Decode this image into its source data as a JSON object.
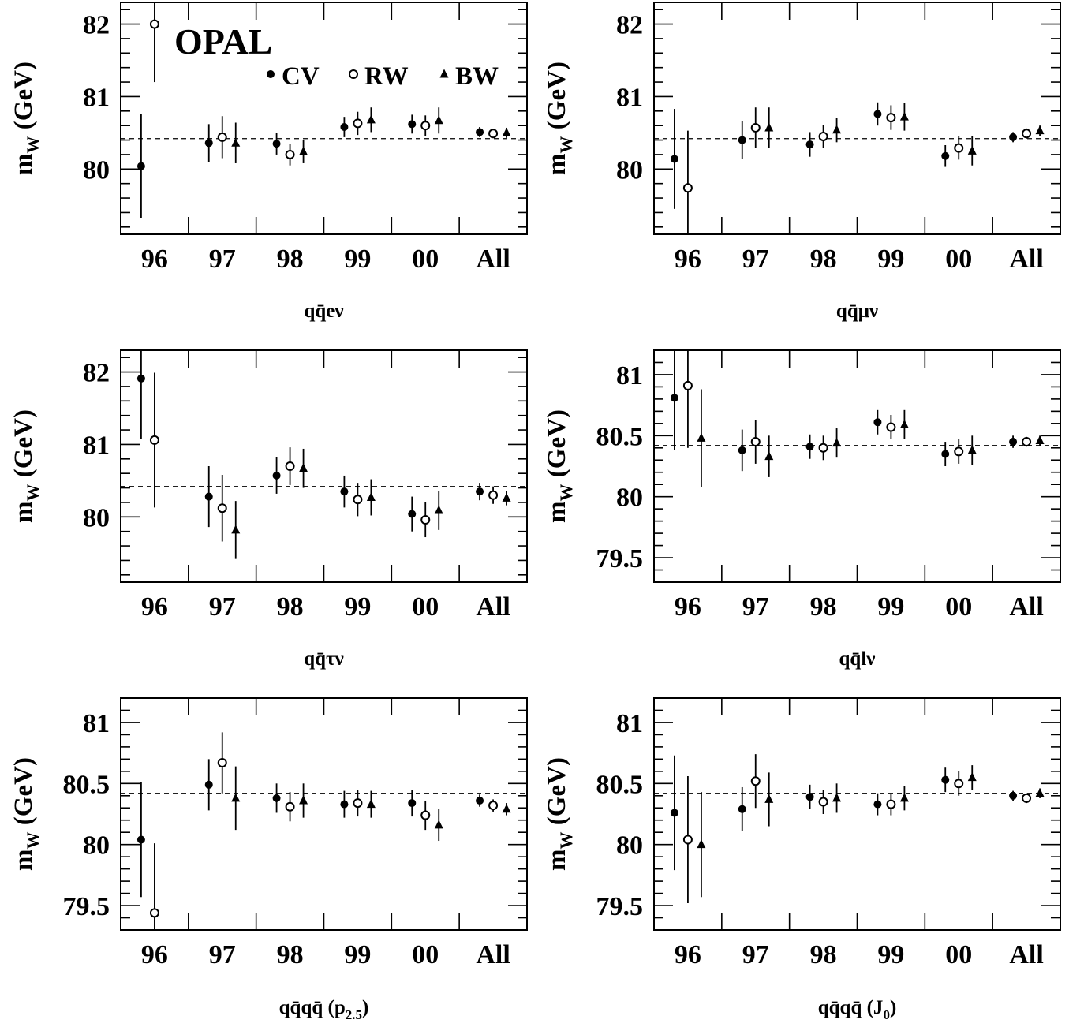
{
  "figure": {
    "brand": "OPAL",
    "legend": [
      {
        "label": "CV",
        "marker": "filled-circle"
      },
      {
        "label": "RW",
        "marker": "open-circle"
      },
      {
        "label": "BW",
        "marker": "filled-triangle"
      }
    ],
    "ylabel_main": "m",
    "ylabel_sub": "W",
    "ylabel_unit": "(GeV)",
    "categories": [
      "96",
      "97",
      "98",
      "99",
      "00",
      "All"
    ],
    "reference_value": 80.42,
    "reference_style": "dashed"
  },
  "chart_data": [
    {
      "type": "scatter",
      "caption": "qq̄eν",
      "categories": [
        "96",
        "97",
        "98",
        "99",
        "00",
        "All"
      ],
      "ylim": [
        79.1,
        82.3
      ],
      "yticks": [
        "80",
        "81",
        "82"
      ],
      "series": [
        {
          "name": "CV",
          "values": [
            80.04,
            80.36,
            80.35,
            80.58,
            80.62,
            80.51
          ],
          "errors": [
            0.72,
            0.26,
            0.15,
            0.14,
            0.13,
            0.07
          ]
        },
        {
          "name": "RW",
          "values": [
            82.0,
            80.44,
            80.2,
            80.63,
            80.6,
            80.49
          ],
          "errors": [
            0.8,
            0.29,
            0.15,
            0.16,
            0.14,
            0.06
          ]
        },
        {
          "name": "BW",
          "values": [
            null,
            80.36,
            80.24,
            80.68,
            80.67,
            80.5
          ],
          "errors": [
            null,
            0.28,
            0.16,
            0.17,
            0.18,
            0.07
          ]
        }
      ]
    },
    {
      "type": "scatter",
      "caption": "qq̄μν",
      "categories": [
        "96",
        "97",
        "98",
        "99",
        "00",
        "All"
      ],
      "ylim": [
        79.1,
        82.3
      ],
      "yticks": [
        "80",
        "81",
        "82"
      ],
      "series": [
        {
          "name": "CV",
          "values": [
            80.14,
            80.4,
            80.34,
            80.76,
            80.18,
            80.44
          ],
          "errors": [
            0.69,
            0.26,
            0.17,
            0.16,
            0.15,
            0.07
          ]
        },
        {
          "name": "RW",
          "values": [
            79.74,
            80.57,
            80.45,
            80.71,
            80.29,
            80.49
          ],
          "errors": [
            0.79,
            0.28,
            0.16,
            0.17,
            0.16,
            0.07
          ]
        },
        {
          "name": "BW",
          "values": [
            null,
            80.57,
            80.54,
            80.72,
            80.25,
            80.53
          ],
          "errors": [
            null,
            0.28,
            0.17,
            0.19,
            0.2,
            0.07
          ]
        }
      ]
    },
    {
      "type": "scatter",
      "caption": "qq̄τν",
      "categories": [
        "96",
        "97",
        "98",
        "99",
        "00",
        "All"
      ],
      "ylim": [
        79.1,
        82.3
      ],
      "yticks": [
        "80",
        "81",
        "82"
      ],
      "series": [
        {
          "name": "CV",
          "values": [
            81.91,
            80.28,
            80.57,
            80.35,
            80.04,
            80.35
          ],
          "errors": [
            0.84,
            0.42,
            0.25,
            0.22,
            0.24,
            0.12
          ]
        },
        {
          "name": "RW",
          "values": [
            81.06,
            80.12,
            80.7,
            80.24,
            79.96,
            80.3
          ],
          "errors": [
            0.93,
            0.46,
            0.26,
            0.23,
            0.24,
            0.12
          ]
        },
        {
          "name": "BW",
          "values": [
            null,
            79.82,
            80.67,
            80.27,
            80.09,
            80.26
          ],
          "errors": [
            null,
            0.4,
            0.27,
            0.25,
            0.27,
            0.1
          ]
        }
      ]
    },
    {
      "type": "scatter",
      "caption": "qq̄lν",
      "categories": [
        "96",
        "97",
        "98",
        "99",
        "00",
        "All"
      ],
      "ylim": [
        79.3,
        81.2
      ],
      "yticks": [
        "79.5",
        "80",
        "80.5",
        "81"
      ],
      "series": [
        {
          "name": "CV",
          "values": [
            80.81,
            80.38,
            80.41,
            80.61,
            80.35,
            80.45
          ],
          "errors": [
            0.43,
            0.17,
            0.1,
            0.1,
            0.1,
            0.05
          ]
        },
        {
          "name": "RW",
          "values": [
            80.91,
            80.45,
            80.4,
            80.57,
            80.37,
            80.45
          ],
          "errors": [
            0.51,
            0.18,
            0.1,
            0.1,
            0.1,
            0.04
          ]
        },
        {
          "name": "BW",
          "values": [
            80.48,
            80.33,
            80.44,
            80.59,
            80.38,
            80.46
          ],
          "errors": [
            0.4,
            0.17,
            0.12,
            0.12,
            0.12,
            0.04
          ]
        }
      ]
    },
    {
      "type": "scatter",
      "caption": "qq̄qq̄ (p2.5)",
      "caption_parts": {
        "main": "qq̄qq̄ (p",
        "sub": "2.5",
        "end": ")"
      },
      "categories": [
        "96",
        "97",
        "98",
        "99",
        "00",
        "All"
      ],
      "ylim": [
        79.3,
        81.2
      ],
      "yticks": [
        "79.5",
        "80",
        "80.5",
        "81"
      ],
      "series": [
        {
          "name": "CV",
          "values": [
            80.04,
            80.49,
            80.38,
            80.33,
            80.34,
            80.36
          ],
          "errors": [
            0.47,
            0.21,
            0.12,
            0.11,
            0.11,
            0.05
          ]
        },
        {
          "name": "RW",
          "values": [
            79.44,
            80.67,
            80.31,
            80.34,
            80.24,
            80.32
          ],
          "errors": [
            0.57,
            0.25,
            0.12,
            0.11,
            0.12,
            0.05
          ]
        },
        {
          "name": "BW",
          "values": [
            null,
            80.38,
            80.36,
            80.33,
            80.16,
            80.29
          ],
          "errors": [
            null,
            0.26,
            0.14,
            0.11,
            0.13,
            0.05
          ]
        }
      ]
    },
    {
      "type": "scatter",
      "caption": "qq̄qq̄ (J0)",
      "caption_parts": {
        "main": "qq̄qq̄ (J",
        "sub": "0",
        "end": ")"
      },
      "categories": [
        "96",
        "97",
        "98",
        "99",
        "00",
        "All"
      ],
      "ylim": [
        79.3,
        81.2
      ],
      "yticks": [
        "79.5",
        "80",
        "80.5",
        "81"
      ],
      "series": [
        {
          "name": "CV",
          "values": [
            80.26,
            80.29,
            80.39,
            80.33,
            80.53,
            80.4
          ],
          "errors": [
            0.47,
            0.18,
            0.1,
            0.09,
            0.1,
            0.04
          ]
        },
        {
          "name": "RW",
          "values": [
            80.04,
            80.52,
            80.35,
            80.33,
            80.5,
            80.38
          ],
          "errors": [
            0.52,
            0.22,
            0.1,
            0.09,
            0.1,
            0.04
          ]
        },
        {
          "name": "BW",
          "values": [
            80.0,
            80.37,
            80.38,
            80.38,
            80.55,
            80.42
          ],
          "errors": [
            0.43,
            0.22,
            0.12,
            0.1,
            0.1,
            0.04
          ]
        }
      ]
    }
  ]
}
